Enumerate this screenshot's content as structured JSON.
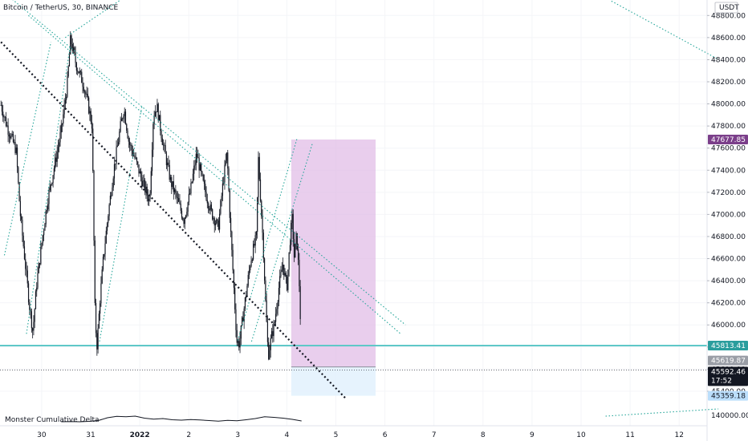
{
  "chart_data": {
    "type": "candlestick",
    "title": "Bitcoin / TetherUS, 30, BINANCE",
    "currency": "USDT",
    "colors": {
      "candle": "#131722",
      "trendline": "#26a69a",
      "channel": "#131722",
      "horizontal": "#5fc8c8",
      "target_zone": "#e1bee7",
      "stop_zone": "#e3f2fd",
      "price_tag": "#131722",
      "target_tag": "#7b3f8a",
      "level_tag": "#2a9d9d",
      "stop_tag": "#bbdefb"
    },
    "ylim": [
      45240,
      48940
    ],
    "y_ticks": [
      {
        "v": 48800,
        "label": "48800.00"
      },
      {
        "v": 48600,
        "label": "48600.00"
      },
      {
        "v": 48400,
        "label": "48400.00"
      },
      {
        "v": 48200,
        "label": "48200.00"
      },
      {
        "v": 48000,
        "label": "48000.00"
      },
      {
        "v": 47800,
        "label": "47800.00"
      },
      {
        "v": 47600,
        "label": "47600.00"
      },
      {
        "v": 47400,
        "label": "47400.00"
      },
      {
        "v": 47200,
        "label": "47200.00"
      },
      {
        "v": 47000,
        "label": "47000.00"
      },
      {
        "v": 46800,
        "label": "46800.00"
      },
      {
        "v": 46600,
        "label": "46600.00"
      },
      {
        "v": 46400,
        "label": "46400.00"
      },
      {
        "v": 46200,
        "label": "46200.00"
      },
      {
        "v": 46000,
        "label": "46000.00"
      },
      {
        "v": 45800,
        "label": "45800.00"
      },
      {
        "v": 45600,
        "label": "45600.00"
      },
      {
        "v": 45400,
        "label": "45400.00"
      }
    ],
    "x_labels": [
      {
        "label": "30",
        "day": -1
      },
      {
        "label": "31",
        "day": 0
      },
      {
        "label": "2022",
        "day": 1,
        "bold": true
      },
      {
        "label": "2",
        "day": 2
      },
      {
        "label": "3",
        "day": 3
      },
      {
        "label": "4",
        "day": 4
      },
      {
        "label": "5",
        "day": 5
      },
      {
        "label": "6",
        "day": 6
      },
      {
        "label": "7",
        "day": 7
      },
      {
        "label": "8",
        "day": 8
      },
      {
        "label": "9",
        "day": 9
      },
      {
        "label": "10",
        "day": 10
      },
      {
        "label": "11",
        "day": 11
      },
      {
        "label": "12",
        "day": 12
      }
    ],
    "price_path": [
      [
        -1.83,
        47990
      ],
      [
        -1.7,
        47790
      ],
      [
        -1.52,
        47580
      ],
      [
        -1.44,
        47020
      ],
      [
        -1.35,
        46620
      ],
      [
        -1.25,
        46180
      ],
      [
        -1.18,
        45940
      ],
      [
        -1.1,
        46380
      ],
      [
        -0.98,
        46800
      ],
      [
        -0.88,
        47130
      ],
      [
        -0.73,
        47460
      ],
      [
        -0.6,
        47760
      ],
      [
        -0.48,
        48170
      ],
      [
        -0.41,
        48590
      ],
      [
        -0.3,
        48360
      ],
      [
        -0.15,
        48180
      ],
      [
        -0.06,
        48010
      ],
      [
        0.03,
        47800
      ],
      [
        0.09,
        46050
      ],
      [
        0.13,
        45810
      ],
      [
        0.19,
        46230
      ],
      [
        0.26,
        46610
      ],
      [
        0.35,
        46980
      ],
      [
        0.47,
        47400
      ],
      [
        0.62,
        47830
      ],
      [
        0.68,
        47960
      ],
      [
        0.78,
        47650
      ],
      [
        0.9,
        47510
      ],
      [
        1.05,
        47300
      ],
      [
        1.2,
        47120
      ],
      [
        1.28,
        47900
      ],
      [
        1.35,
        47980
      ],
      [
        1.47,
        47650
      ],
      [
        1.63,
        47300
      ],
      [
        1.79,
        47100
      ],
      [
        1.9,
        46950
      ],
      [
        2.03,
        47200
      ],
      [
        2.16,
        47550
      ],
      [
        2.29,
        47280
      ],
      [
        2.45,
        47030
      ],
      [
        2.6,
        46880
      ],
      [
        2.71,
        47330
      ],
      [
        2.78,
        47550
      ],
      [
        2.85,
        46880
      ],
      [
        2.92,
        46330
      ],
      [
        2.98,
        45850
      ],
      [
        3.03,
        45830
      ],
      [
        3.14,
        46190
      ],
      [
        3.26,
        46580
      ],
      [
        3.38,
        46800
      ],
      [
        3.42,
        47500
      ],
      [
        3.47,
        47100
      ],
      [
        3.52,
        46700
      ],
      [
        3.57,
        46160
      ],
      [
        3.62,
        45720
      ],
      [
        3.68,
        45880
      ],
      [
        3.75,
        46020
      ],
      [
        3.84,
        46350
      ],
      [
        3.92,
        46550
      ],
      [
        4.0,
        46340
      ],
      [
        4.07,
        46800
      ],
      [
        4.11,
        46970
      ],
      [
        4.15,
        46610
      ],
      [
        4.2,
        46820
      ],
      [
        4.24,
        46500
      ],
      [
        4.27,
        46200
      ],
      [
        4.29,
        45619
      ]
    ],
    "long_position": {
      "start_day": 4.09,
      "end_day": 5.81,
      "entry": 45619.87,
      "target": 47677.85,
      "stop": 45359.18
    },
    "horizontal_levels": [
      45813.41
    ],
    "price_tags": [
      {
        "v": 47677.85,
        "label": "47677.85",
        "kind": "target"
      },
      {
        "v": 45813.41,
        "label": "45813.41",
        "kind": "level"
      },
      {
        "v": 45619.87,
        "label": "45619.87",
        "kind": "entry"
      },
      {
        "v": 45592.46,
        "label": "45592.46",
        "kind": "price"
      },
      {
        "v": 45359.18,
        "label": "45359.18",
        "kind": "stop"
      }
    ],
    "countdown": "17:52",
    "trendlines_up": [
      [
        [
          -1.31,
          45920
        ],
        [
          -0.42,
          48520
        ]
      ],
      [
        [
          -0.52,
          48600
        ],
        [
          0.59,
          48935
        ]
      ],
      [
        [
          0.18,
          45850
        ],
        [
          1.05,
          47990
        ]
      ],
      [
        [
          -1.76,
          46630
        ],
        [
          -0.81,
          48560
        ]
      ],
      [
        [
          3.0,
          45860
        ],
        [
          4.21,
          47690
        ]
      ],
      [
        [
          3.28,
          45850
        ],
        [
          4.52,
          47640
        ]
      ]
    ],
    "trendlines_down": [
      [
        [
          -1.83,
          48560
        ],
        [
          5.19,
          45340
        ]
      ],
      [
        [
          -1.8,
          49020
        ],
        [
          6.42,
          46000
        ]
      ],
      [
        [
          -1.27,
          48800
        ],
        [
          6.32,
          45920
        ]
      ],
      [
        [
          10.62,
          48930
        ],
        [
          12.81,
          48400
        ]
      ]
    ],
    "indicator": {
      "name": "Monster Cumulative Delta",
      "tick_label": "140000.00",
      "values": [
        0.1,
        0.12,
        0.1,
        0.15,
        0.25,
        0.6,
        0.78,
        0.72,
        0.8,
        0.55,
        0.42,
        0.5,
        0.35,
        0.3,
        0.38,
        0.32,
        0.25,
        0.18,
        0.28,
        0.22,
        0.35,
        0.5,
        0.72,
        0.65,
        0.55,
        0.4,
        0.2
      ]
    }
  }
}
